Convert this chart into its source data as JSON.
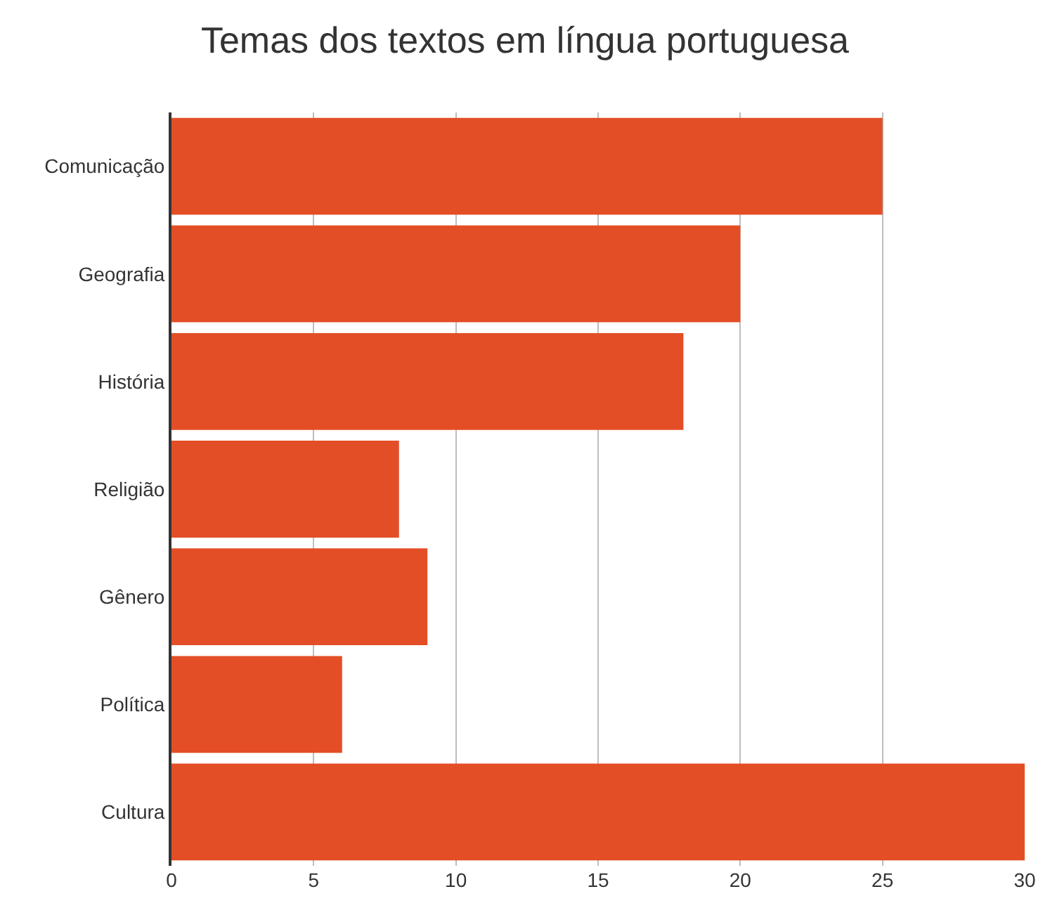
{
  "chart_data": {
    "type": "bar",
    "orientation": "horizontal",
    "title": "Temas dos textos em língua portuguesa",
    "categories": [
      "Comunicação",
      "Geografia",
      "História",
      "Religião",
      "Gênero",
      "Política",
      "Cultura"
    ],
    "values": [
      25,
      20,
      18,
      8,
      9,
      6,
      30
    ],
    "color": "#e34e26",
    "xlim": [
      0,
      30
    ],
    "xticks": [
      0,
      5,
      10,
      15,
      20,
      25,
      30
    ],
    "grid": "x"
  }
}
